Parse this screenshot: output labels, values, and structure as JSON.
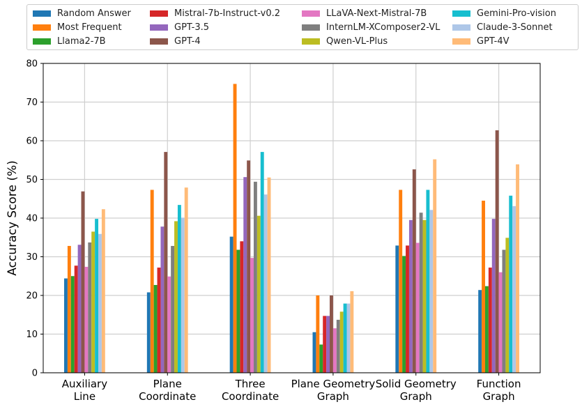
{
  "chart_data": {
    "type": "bar",
    "title": "",
    "xlabel": "",
    "ylabel": "Accuracy Score (%)",
    "ylim": [
      0,
      80
    ],
    "yticks": [
      0,
      10,
      20,
      30,
      40,
      50,
      60,
      70,
      80
    ],
    "grid": true,
    "legend_position": "top",
    "categories": [
      [
        "Auxiliary",
        "Line"
      ],
      [
        "Plane",
        "Coordinate"
      ],
      [
        "Three",
        "Coordinate"
      ],
      [
        "Plane Geometry",
        "Graph"
      ],
      [
        "Solid Geometry",
        "Graph"
      ],
      [
        "Function",
        "Graph"
      ]
    ],
    "series": [
      {
        "name": "Random Answer",
        "color": "#1f77b4",
        "values": [
          24.4,
          20.8,
          35.2,
          10.5,
          32.9,
          21.4
        ]
      },
      {
        "name": "Most Frequent",
        "color": "#ff7f0e",
        "values": [
          32.8,
          47.3,
          74.7,
          20.0,
          47.3,
          44.5
        ]
      },
      {
        "name": "Llama2-7B",
        "color": "#2ca02c",
        "values": [
          25.0,
          22.7,
          31.8,
          7.3,
          30.2,
          22.4
        ]
      },
      {
        "name": "Mistral-7b-Instruct-v0.2",
        "color": "#d62728",
        "values": [
          27.7,
          27.2,
          34.0,
          14.7,
          32.9,
          27.2
        ]
      },
      {
        "name": "GPT-3.5",
        "color": "#9467bd",
        "values": [
          33.1,
          37.8,
          50.6,
          14.7,
          39.5,
          39.8
        ]
      },
      {
        "name": "GPT-4",
        "color": "#8c564b",
        "values": [
          46.9,
          57.1,
          54.9,
          20.0,
          52.6,
          62.7
        ]
      },
      {
        "name": "LLaVA-Next-Mistral-7B",
        "color": "#e377c2",
        "values": [
          27.4,
          24.9,
          29.7,
          11.5,
          33.6,
          26.0
        ]
      },
      {
        "name": "InternLM-XComposer2-VL",
        "color": "#7f7f7f",
        "values": [
          33.7,
          32.8,
          49.4,
          13.7,
          41.4,
          31.8
        ]
      },
      {
        "name": "Qwen-VL-Plus",
        "color": "#bcbd22",
        "values": [
          36.5,
          39.2,
          40.6,
          15.8,
          39.5,
          34.9
        ]
      },
      {
        "name": "Gemini-Pro-vision",
        "color": "#17becf",
        "values": [
          39.8,
          43.4,
          57.1,
          17.9,
          47.3,
          45.8
        ]
      },
      {
        "name": "Claude-3-Sonnet",
        "color": "#aec7e8",
        "values": [
          35.9,
          40.1,
          46.1,
          17.9,
          42.1,
          43.1
        ]
      },
      {
        "name": "GPT-4V",
        "color": "#ffbb78",
        "values": [
          42.3,
          47.9,
          50.5,
          21.1,
          55.2,
          53.9
        ]
      }
    ]
  }
}
